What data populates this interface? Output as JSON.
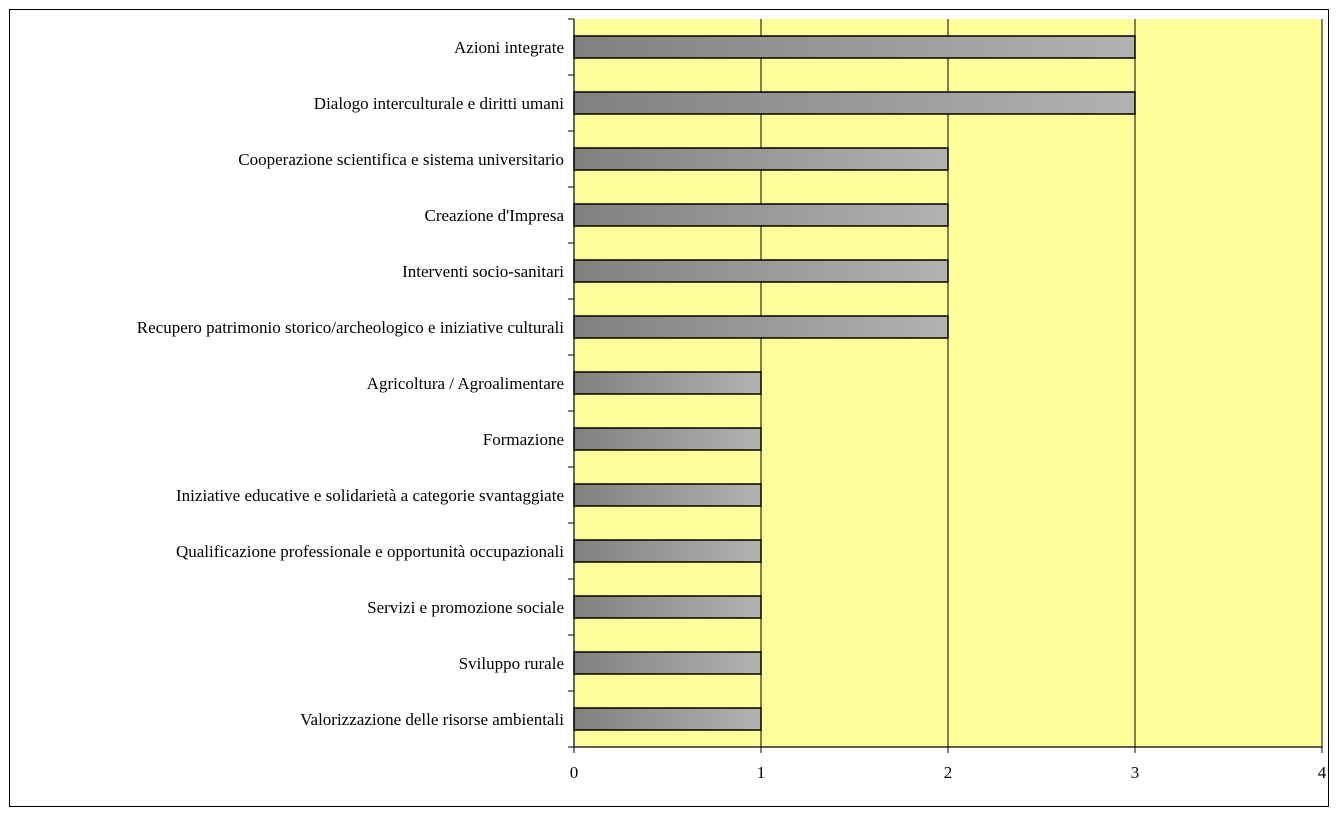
{
  "chart_data": {
    "type": "bar",
    "orientation": "horizontal",
    "title": "",
    "xlabel": "",
    "ylabel": "",
    "categories": [
      "Azioni integrate",
      "Dialogo interculturale e diritti umani",
      "Cooperazione scientifica e sistema universitario",
      "Creazione d'Impresa",
      "Interventi socio-sanitari",
      "Recupero patrimonio storico/archeologico e iniziative culturali",
      "Agricoltura / Agroalimentare",
      "Formazione",
      "Iniziative educative e solidarietà a categorie svantaggiate",
      "Qualificazione professionale e opportunità occupazionali",
      "Servizi e promozione sociale",
      "Sviluppo rurale",
      "Valorizzazione delle risorse ambientali"
    ],
    "values": [
      3,
      3,
      2,
      2,
      2,
      2,
      1,
      1,
      1,
      1,
      1,
      1,
      1
    ],
    "xlim": [
      0,
      4
    ],
    "x_ticks": [
      "0",
      "1",
      "2",
      "3",
      "4"
    ],
    "grid": true,
    "legend": "none",
    "colors": {
      "plot_background": "#ffff99",
      "bar_dark": "#808080",
      "bar_light": "#b2b2b2",
      "bar_outline": "#000000",
      "gridline": "#000000"
    }
  }
}
